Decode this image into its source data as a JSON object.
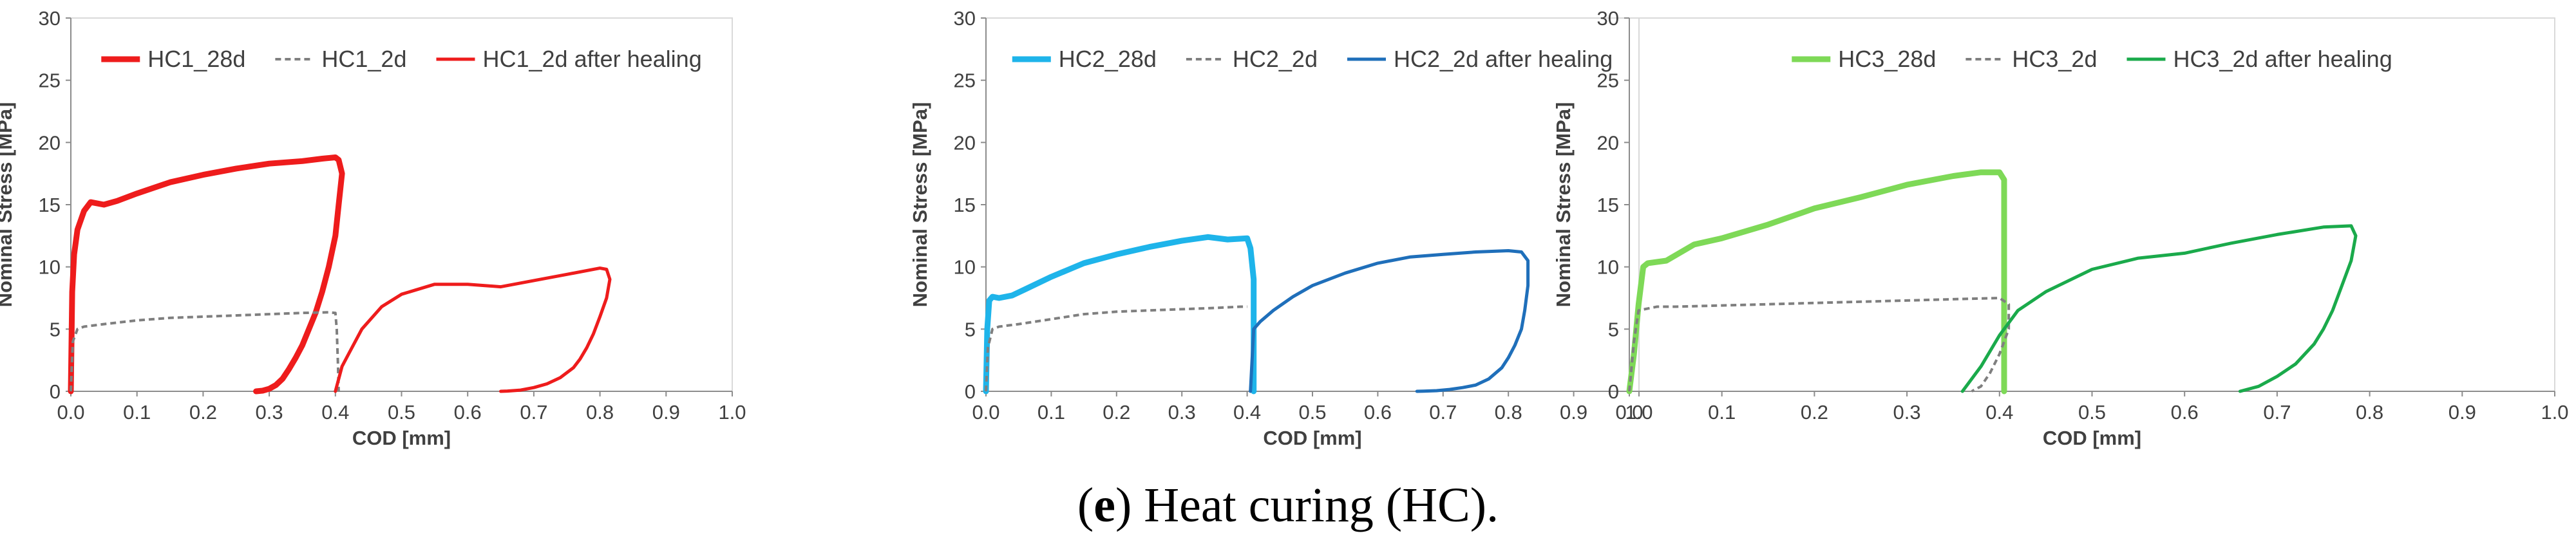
{
  "caption": {
    "prefix_open": "(",
    "letter": "e",
    "prefix_close": ")",
    "text": "Heat curing (HC)."
  },
  "chart_data": [
    {
      "type": "line",
      "xlabel": "COD [mm]",
      "ylabel": "Nominal Stress [MPa]",
      "xlim": [
        0,
        1.0
      ],
      "ylim": [
        0,
        30
      ],
      "xticks": [
        "0.0",
        "0.1",
        "0.2",
        "0.3",
        "0.4",
        "0.5",
        "0.6",
        "0.7",
        "0.8",
        "0.9",
        "1.0"
      ],
      "yticks": [
        "0",
        "5",
        "10",
        "15",
        "20",
        "25",
        "30"
      ],
      "grid": false,
      "legend": "top",
      "series": [
        {
          "name": "HC1_28d",
          "color": "#ee1c1c",
          "style": "thick",
          "x": [
            0,
            0.002,
            0.005,
            0.01,
            0.02,
            0.03,
            0.05,
            0.07,
            0.1,
            0.15,
            0.2,
            0.25,
            0.3,
            0.35,
            0.38,
            0.4,
            0.405,
            0.41,
            0.405,
            0.4,
            0.39,
            0.38,
            0.37,
            0.36,
            0.35,
            0.34,
            0.33,
            0.32,
            0.31,
            0.3,
            0.29,
            0.28
          ],
          "y": [
            0,
            8,
            11,
            13,
            14.5,
            15.2,
            15,
            15.3,
            15.9,
            16.8,
            17.4,
            17.9,
            18.3,
            18.5,
            18.7,
            18.8,
            18.6,
            17.5,
            15,
            12.5,
            10,
            8,
            6.3,
            5,
            3.7,
            2.7,
            1.8,
            1,
            0.5,
            0.2,
            0.05,
            0
          ]
        },
        {
          "name": "HC1_2d",
          "color": "#7f7f7f",
          "style": "dashed",
          "x": [
            0,
            0.003,
            0.01,
            0.02,
            0.05,
            0.1,
            0.15,
            0.2,
            0.25,
            0.3,
            0.35,
            0.39,
            0.4,
            0.402,
            0.404,
            0.405
          ],
          "y": [
            0,
            4,
            5,
            5.2,
            5.4,
            5.7,
            5.9,
            6,
            6.1,
            6.2,
            6.3,
            6.35,
            6.3,
            5,
            2,
            0
          ]
        },
        {
          "name": "HC1_2d after healing",
          "color": "#ee1c1c",
          "style": "solid",
          "x": [
            0.4,
            0.41,
            0.42,
            0.44,
            0.47,
            0.5,
            0.55,
            0.6,
            0.65,
            0.7,
            0.75,
            0.8,
            0.81,
            0.815,
            0.81,
            0.8,
            0.79,
            0.78,
            0.77,
            0.76,
            0.74,
            0.72,
            0.7,
            0.68,
            0.66,
            0.65
          ],
          "y": [
            0,
            2,
            3,
            5,
            6.8,
            7.8,
            8.6,
            8.6,
            8.4,
            8.9,
            9.4,
            9.9,
            9.8,
            9,
            7.5,
            6,
            4.6,
            3.5,
            2.6,
            1.9,
            1.1,
            0.6,
            0.3,
            0.1,
            0.02,
            0
          ]
        }
      ]
    },
    {
      "type": "line",
      "xlabel": "COD [mm]",
      "ylabel": "Nominal Stress [MPa]",
      "xlim": [
        0,
        1.0
      ],
      "ylim": [
        0,
        30
      ],
      "xticks": [
        "0.0",
        "0.1",
        "0.2",
        "0.3",
        "0.4",
        "0.5",
        "0.6",
        "0.7",
        "0.8",
        "0.9",
        "1.0"
      ],
      "yticks": [
        "0",
        "5",
        "10",
        "15",
        "20",
        "25",
        "30"
      ],
      "grid": false,
      "legend": "top",
      "series": [
        {
          "name": "HC2_28d",
          "color": "#1eb4ea",
          "style": "thick",
          "x": [
            0,
            0.002,
            0.005,
            0.01,
            0.02,
            0.04,
            0.06,
            0.1,
            0.15,
            0.2,
            0.25,
            0.3,
            0.34,
            0.37,
            0.4,
            0.405,
            0.41,
            0.41
          ],
          "y": [
            0,
            5,
            7.3,
            7.6,
            7.5,
            7.7,
            8.2,
            9.2,
            10.3,
            11,
            11.6,
            12.1,
            12.4,
            12.2,
            12.3,
            11.5,
            9,
            0
          ]
        },
        {
          "name": "HC2_2d",
          "color": "#7f7f7f",
          "style": "dashed",
          "x": [
            0,
            0.003,
            0.01,
            0.02,
            0.05,
            0.1,
            0.15,
            0.2,
            0.25,
            0.3,
            0.35,
            0.39,
            0.4
          ],
          "y": [
            0,
            3.5,
            5,
            5.2,
            5.4,
            5.8,
            6.2,
            6.4,
            6.5,
            6.6,
            6.7,
            6.8,
            6.8
          ]
        },
        {
          "name": "HC2_2d after healing",
          "color": "#1f6fba",
          "style": "solid",
          "x": [
            0.405,
            0.41,
            0.42,
            0.44,
            0.47,
            0.5,
            0.55,
            0.6,
            0.65,
            0.7,
            0.75,
            0.8,
            0.82,
            0.83,
            0.83,
            0.825,
            0.82,
            0.81,
            0.8,
            0.79,
            0.77,
            0.75,
            0.73,
            0.71,
            0.69,
            0.67,
            0.66
          ],
          "y": [
            0,
            5,
            5.6,
            6.5,
            7.6,
            8.5,
            9.5,
            10.3,
            10.8,
            11,
            11.2,
            11.3,
            11.2,
            10.5,
            8.5,
            6.5,
            5,
            3.7,
            2.7,
            1.9,
            1,
            0.5,
            0.3,
            0.15,
            0.05,
            0.01,
            0
          ]
        }
      ]
    },
    {
      "type": "line",
      "xlabel": "COD [mm]",
      "ylabel": "Nominal Stress [MPa]",
      "xlim": [
        0,
        1.0
      ],
      "ylim": [
        0,
        30
      ],
      "xticks": [
        "0.0",
        "0.1",
        "0.2",
        "0.3",
        "0.4",
        "0.5",
        "0.6",
        "0.7",
        "0.8",
        "0.9",
        "1.0"
      ],
      "yticks": [
        "0",
        "5",
        "10",
        "15",
        "20",
        "25",
        "30"
      ],
      "grid": false,
      "legend": "top",
      "series": [
        {
          "name": "HC3_28d",
          "color": "#7ed957",
          "style": "thick",
          "x": [
            0,
            0.005,
            0.01,
            0.015,
            0.02,
            0.04,
            0.07,
            0.1,
            0.15,
            0.2,
            0.25,
            0.3,
            0.35,
            0.38,
            0.4,
            0.405,
            0.405,
            0.405
          ],
          "y": [
            0,
            3,
            7,
            10,
            10.3,
            10.5,
            11.8,
            12.3,
            13.4,
            14.7,
            15.6,
            16.6,
            17.3,
            17.6,
            17.6,
            17,
            10,
            0
          ]
        },
        {
          "name": "HC3_2d",
          "color": "#7f7f7f",
          "style": "dashed",
          "x": [
            0,
            0.005,
            0.01,
            0.03,
            0.05,
            0.1,
            0.15,
            0.2,
            0.25,
            0.3,
            0.35,
            0.4,
            0.41,
            0.41,
            0.4,
            0.39,
            0.38,
            0.37
          ],
          "y": [
            0,
            4,
            6.5,
            6.8,
            6.8,
            6.9,
            7,
            7.1,
            7.2,
            7.3,
            7.4,
            7.5,
            7,
            5,
            3,
            1.5,
            0.4,
            0
          ]
        },
        {
          "name": "HC3_2d after healing",
          "color": "#1aaa4b",
          "style": "solid",
          "x": [
            0.36,
            0.38,
            0.4,
            0.42,
            0.45,
            0.5,
            0.55,
            0.6,
            0.65,
            0.7,
            0.75,
            0.78,
            0.785,
            0.78,
            0.77,
            0.76,
            0.75,
            0.74,
            0.72,
            0.7,
            0.68,
            0.66
          ],
          "y": [
            0,
            2,
            4.5,
            6.5,
            8,
            9.8,
            10.7,
            11.1,
            11.9,
            12.6,
            13.2,
            13.3,
            12.5,
            10.5,
            8.5,
            6.5,
            5,
            3.8,
            2.2,
            1.2,
            0.4,
            0
          ]
        }
      ]
    }
  ]
}
